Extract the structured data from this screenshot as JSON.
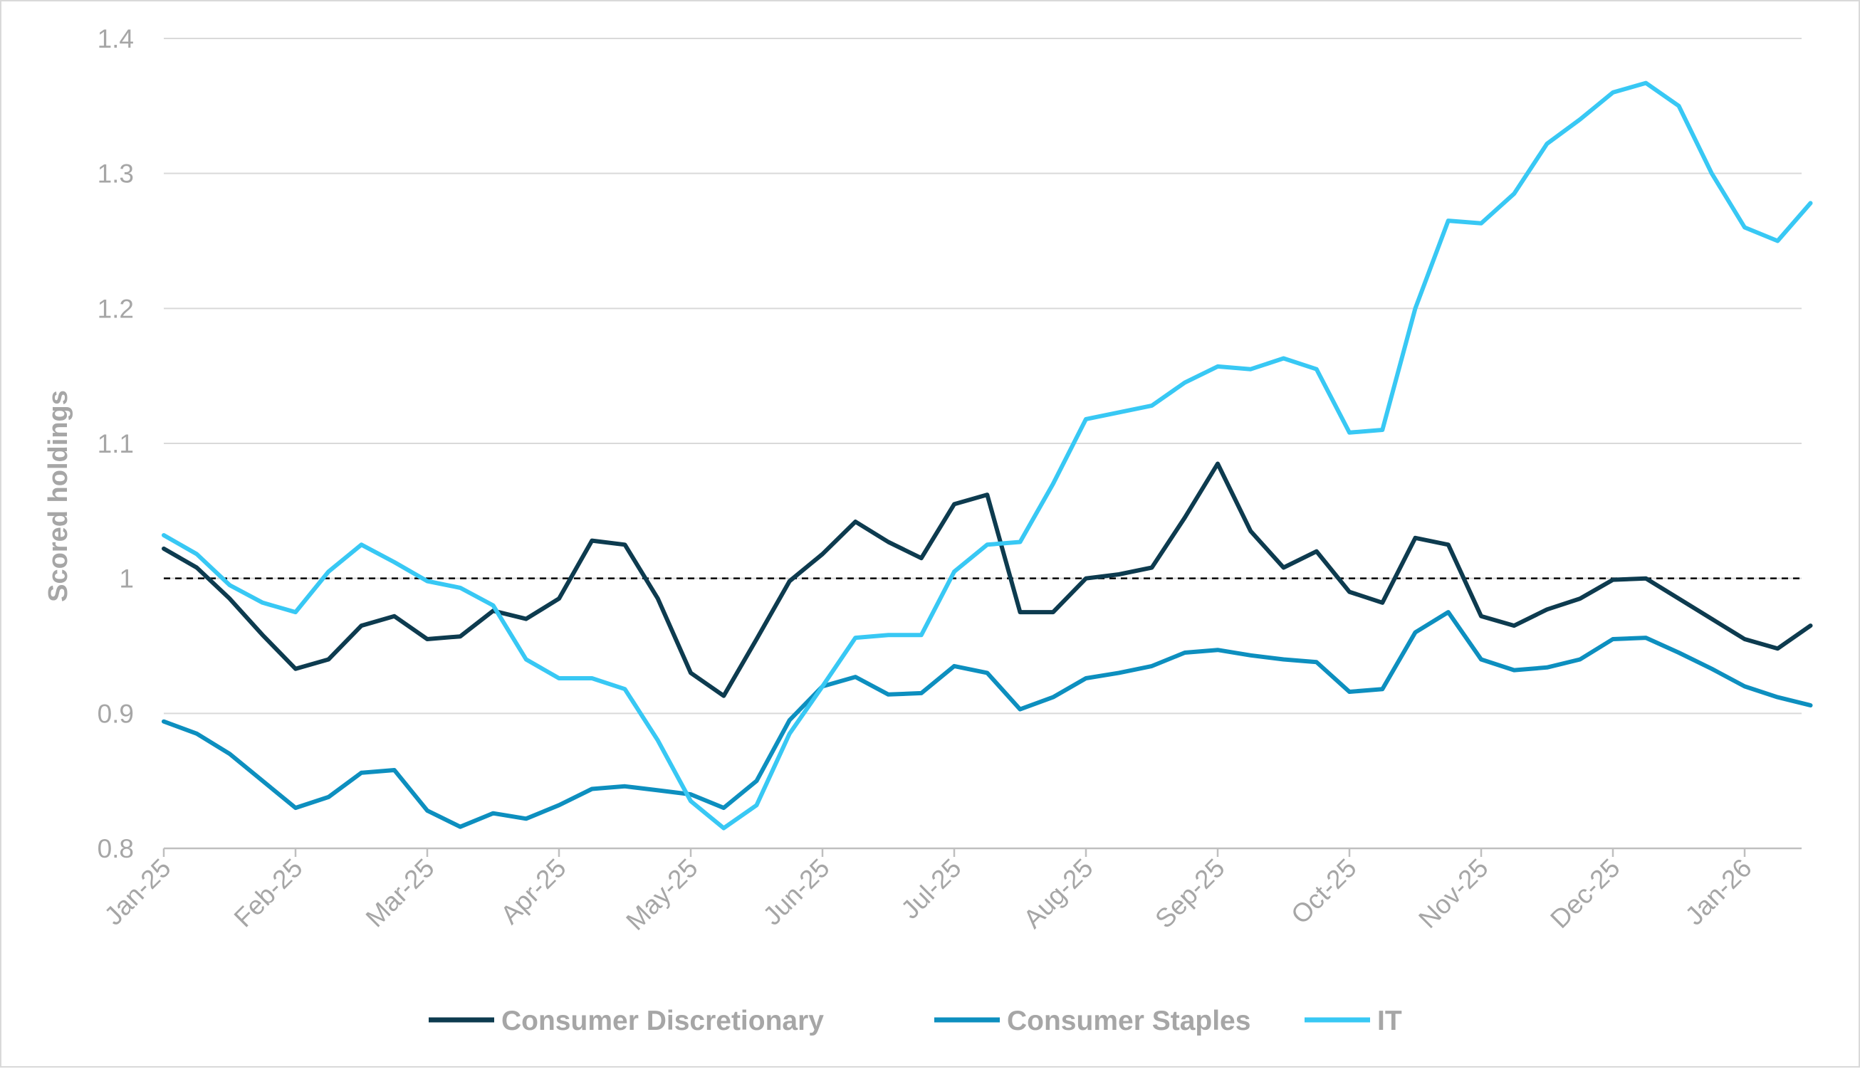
{
  "chart_data": {
    "type": "line",
    "title": "",
    "xlabel": "",
    "ylabel": "Scored holdings",
    "ylim": [
      0.8,
      1.4
    ],
    "yticks": [
      "0.8",
      "0.9",
      "1",
      "1.1",
      "1.2",
      "1.3",
      "1.4"
    ],
    "grid": true,
    "reference_line": 1.0,
    "legend_position": "bottom",
    "x": [
      0,
      0.25,
      0.5,
      0.75,
      1,
      1.25,
      1.5,
      1.75,
      2,
      2.25,
      2.5,
      2.75,
      3,
      3.25,
      3.5,
      3.75,
      4,
      4.25,
      4.5,
      4.75,
      5,
      5.25,
      5.5,
      5.75,
      6,
      6.25,
      6.5,
      6.75,
      7,
      7.25,
      7.5,
      7.75,
      8,
      8.25,
      8.5,
      8.75,
      9,
      9.25,
      9.5,
      9.75,
      10,
      10.25,
      10.5,
      10.75,
      11,
      11.25,
      11.5,
      11.75,
      12,
      12.25,
      12.5
    ],
    "categories": [
      "Jan-25",
      "Feb-25",
      "Mar-25",
      "Apr-25",
      "May-25",
      "Jun-25",
      "Jul-25",
      "Aug-25",
      "Sep-25",
      "Oct-25",
      "Nov-25",
      "Dec-25",
      "Jan-26"
    ],
    "series": [
      {
        "name": "Consumer Discretionary",
        "color": "#0d3b4f",
        "values": [
          1.022,
          1.008,
          0.985,
          0.958,
          0.933,
          0.94,
          0.965,
          0.972,
          0.955,
          0.957,
          0.976,
          0.97,
          0.985,
          1.028,
          1.025,
          0.985,
          0.93,
          0.913,
          0.955,
          0.998,
          1.018,
          1.042,
          1.027,
          1.015,
          1.055,
          1.062,
          0.975,
          0.975,
          1.0,
          1.003,
          1.008,
          1.045,
          1.085,
          1.035,
          1.008,
          1.02,
          0.99,
          0.982,
          1.03,
          1.025,
          0.972,
          0.965,
          0.977,
          0.985,
          0.999,
          1.0,
          0.985,
          0.97,
          0.955,
          0.948,
          0.965
        ]
      },
      {
        "name": "Consumer Staples",
        "color": "#0d8fbf",
        "values": [
          0.894,
          0.885,
          0.87,
          0.85,
          0.83,
          0.838,
          0.856,
          0.858,
          0.828,
          0.816,
          0.826,
          0.822,
          0.832,
          0.844,
          0.846,
          0.843,
          0.84,
          0.83,
          0.85,
          0.895,
          0.92,
          0.927,
          0.914,
          0.915,
          0.935,
          0.93,
          0.903,
          0.912,
          0.926,
          0.93,
          0.935,
          0.945,
          0.947,
          0.943,
          0.94,
          0.938,
          0.916,
          0.918,
          0.96,
          0.975,
          0.94,
          0.932,
          0.934,
          0.94,
          0.955,
          0.956,
          0.945,
          0.933,
          0.92,
          0.912,
          0.906
        ]
      },
      {
        "name": "IT",
        "color": "#38c8f4",
        "values": [
          1.032,
          1.018,
          0.995,
          0.982,
          0.975,
          1.005,
          1.025,
          1.012,
          0.998,
          0.993,
          0.98,
          0.94,
          0.926,
          0.926,
          0.918,
          0.88,
          0.835,
          0.815,
          0.832,
          0.885,
          0.92,
          0.956,
          0.958,
          0.958,
          1.005,
          1.025,
          1.027,
          1.07,
          1.118,
          1.123,
          1.128,
          1.145,
          1.157,
          1.155,
          1.163,
          1.155,
          1.108,
          1.11,
          1.2,
          1.265,
          1.263,
          1.285,
          1.322,
          1.34,
          1.36,
          1.367,
          1.35,
          1.3,
          1.26,
          1.25,
          1.278
        ]
      }
    ]
  }
}
